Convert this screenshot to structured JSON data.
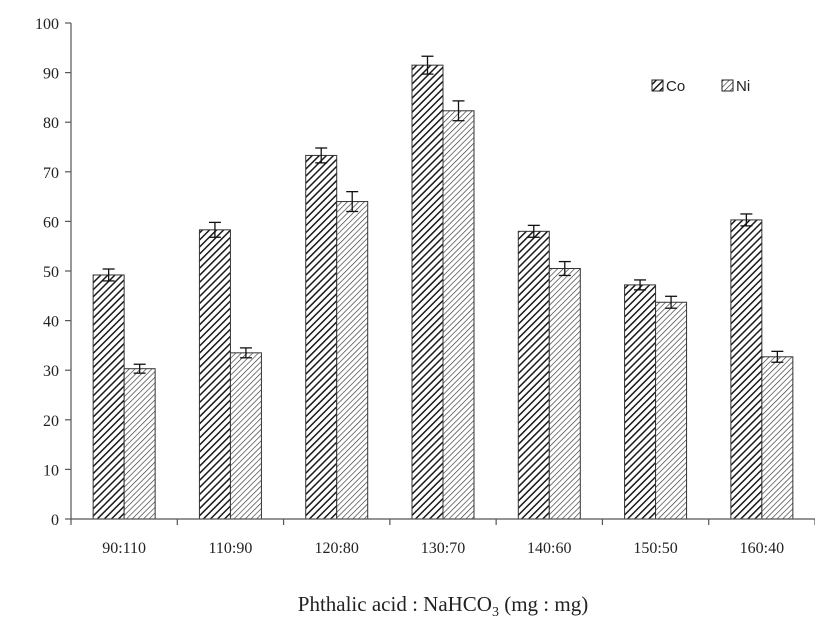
{
  "chart_data": {
    "type": "bar",
    "title": "",
    "categories": [
      "90:110",
      "110:90",
      "120:80",
      "130:70",
      "140:60",
      "150:50",
      "160:40"
    ],
    "series": [
      {
        "name": "Co",
        "values": [
          49.2,
          58.3,
          73.3,
          91.5,
          58.0,
          47.2,
          60.3
        ],
        "errors": [
          1.2,
          1.5,
          1.5,
          1.8,
          1.2,
          1.0,
          1.2
        ],
        "pattern": "dense-diagonal"
      },
      {
        "name": "Ni",
        "values": [
          30.3,
          33.5,
          64.0,
          82.3,
          50.5,
          43.7,
          32.7
        ],
        "errors": [
          0.9,
          1.0,
          2.0,
          2.0,
          1.4,
          1.2,
          1.1
        ],
        "pattern": "light-diagonal"
      }
    ],
    "xlabel_main": "Phthalic acid : NaHCO",
    "xlabel_sub": "3",
    "xlabel_tail": " (mg : mg)",
    "ylabel": "",
    "ylim": [
      0,
      100
    ],
    "yticks": [
      "0",
      "10",
      "20",
      "30",
      "40",
      "50",
      "60",
      "70",
      "80",
      "90",
      "100"
    ],
    "grid": false,
    "legend_position": "top-right",
    "colors": {
      "axis": "#555555",
      "bar_stroke": "#333333",
      "hatch": "#222222",
      "background": "#ffffff"
    }
  }
}
